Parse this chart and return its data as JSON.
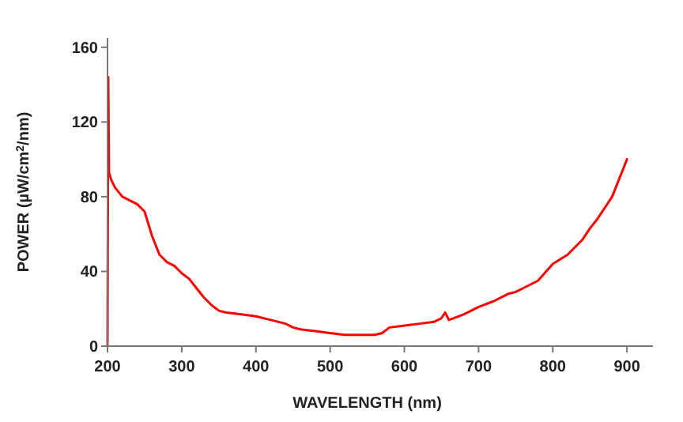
{
  "chart_data": {
    "type": "line",
    "xlabel": "WAVELENGTH (nm)",
    "ylabel": "POWER (µW/cm$^{2}$/nm)",
    "x": [
      200,
      201,
      202,
      205,
      210,
      220,
      230,
      240,
      250,
      260,
      270,
      280,
      290,
      300,
      310,
      320,
      330,
      340,
      350,
      360,
      380,
      400,
      420,
      440,
      450,
      460,
      480,
      500,
      520,
      540,
      560,
      570,
      580,
      600,
      620,
      640,
      650,
      655,
      660,
      680,
      700,
      720,
      730,
      740,
      750,
      760,
      780,
      800,
      820,
      840,
      850,
      860,
      880,
      890,
      900
    ],
    "series": [
      {
        "color": "#ff0000",
        "values": [
          0,
          144,
          93,
          89,
          85,
          80,
          78,
          76,
          72,
          59,
          49,
          45,
          43,
          39,
          36,
          31,
          26,
          22,
          19,
          18,
          17,
          16,
          14,
          12,
          10,
          9,
          8,
          7,
          6,
          6,
          6,
          7,
          10,
          11,
          12,
          13,
          15,
          18,
          14,
          17,
          21,
          24,
          26,
          28,
          29,
          31,
          35,
          44,
          49,
          57,
          63,
          68,
          80,
          90,
          100
        ]
      }
    ],
    "xlim": [
      200,
      935
    ],
    "xticks": [
      200,
      300,
      400,
      500,
      600,
      700,
      800,
      900
    ],
    "ylim": [
      0,
      165
    ],
    "yticks": [
      0,
      40,
      80,
      120,
      160
    ],
    "line_style": "solid",
    "marker": "none"
  }
}
